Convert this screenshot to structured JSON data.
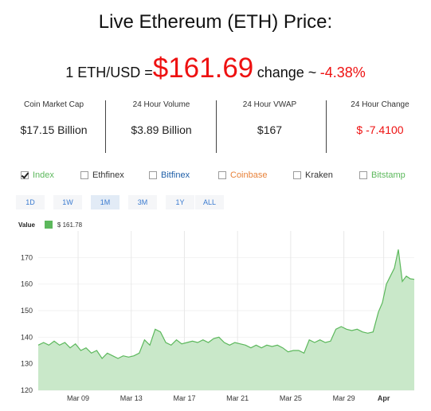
{
  "title": "Live Ethereum (ETH) Price:",
  "price": {
    "pair_label": "1 ETH/USD =",
    "value": "$161.69",
    "change_label": "change ~",
    "change_pct": "-4.38%"
  },
  "stats": [
    {
      "label": "Coin Market Cap",
      "value": "$17.15 Billion"
    },
    {
      "label": "24 Hour Volume",
      "value": "$3.89 Billion"
    },
    {
      "label": "24 Hour VWAP",
      "value": "$167"
    },
    {
      "label": "24 Hour Change",
      "value": "$ -7.4100"
    }
  ],
  "sources": [
    {
      "name": "Index",
      "checked": true,
      "color": "#5cb85c"
    },
    {
      "name": "Ethfinex",
      "checked": false,
      "color": "#333333"
    },
    {
      "name": "Bitfinex",
      "checked": false,
      "color": "#1f5fa8"
    },
    {
      "name": "Coinbase",
      "checked": false,
      "color": "#e8823a"
    },
    {
      "name": "Kraken",
      "checked": false,
      "color": "#333333"
    },
    {
      "name": "Bitstamp",
      "checked": false,
      "color": "#5cb85c"
    }
  ],
  "ranges": [
    "1D",
    "1W",
    "1M",
    "3M",
    "1Y",
    "ALL"
  ],
  "active_range": "1M",
  "legend": {
    "label": "Value",
    "value": "$ 161.78",
    "color": "#5cb85c"
  },
  "chart_data": {
    "type": "area",
    "yticks": [
      "170",
      "160",
      "150",
      "140",
      "130",
      "120"
    ],
    "ylim": [
      120,
      180
    ],
    "xticks": [
      {
        "label": "Mar 09",
        "day": 9
      },
      {
        "label": "Mar 13",
        "day": 13
      },
      {
        "label": "Mar 17",
        "day": 17
      },
      {
        "label": "Mar 21",
        "day": 21
      },
      {
        "label": "Mar 25",
        "day": 25
      },
      {
        "label": "Mar 29",
        "day": 29
      },
      {
        "label": "Apr",
        "day": 32
      }
    ],
    "x_days": [
      6,
      6.4,
      6.8,
      7.2,
      7.6,
      8,
      8.4,
      8.8,
      9.2,
      9.6,
      10,
      10.4,
      10.8,
      11.2,
      11.6,
      12,
      12.4,
      12.8,
      13.2,
      13.6,
      14,
      14.4,
      14.8,
      15.2,
      15.6,
      16,
      16.4,
      16.8,
      17.2,
      17.6,
      18,
      18.4,
      18.8,
      19.2,
      19.6,
      20,
      20.4,
      20.8,
      21.2,
      21.6,
      22,
      22.4,
      22.8,
      23.2,
      23.6,
      24,
      24.4,
      24.8,
      25.2,
      25.6,
      26,
      26.4,
      26.8,
      27.2,
      27.6,
      28,
      28.4,
      28.8,
      29.2,
      29.6,
      30,
      30.4,
      30.8,
      31.2,
      31.6,
      31.9,
      32.2,
      32.5,
      32.8,
      33.1,
      33.4,
      33.7,
      34,
      34.3
    ],
    "values": [
      137,
      138,
      137,
      138.5,
      137,
      138,
      136,
      137.5,
      135,
      136,
      134,
      135,
      132,
      134,
      133,
      132,
      133,
      132.5,
      133,
      134,
      139,
      137,
      143,
      142,
      138,
      137,
      139,
      137.5,
      138,
      138.5,
      138,
      139,
      138,
      139.5,
      140,
      138,
      137,
      138,
      137.5,
      137,
      136,
      137,
      136,
      137,
      136.5,
      137,
      136,
      134.5,
      135,
      135,
      134,
      139,
      138,
      139,
      138,
      138.5,
      143,
      144,
      143,
      142.5,
      143,
      142,
      141.5,
      142,
      149.5,
      153,
      160,
      163,
      166,
      173,
      161,
      163,
      162,
      161.78
    ]
  }
}
